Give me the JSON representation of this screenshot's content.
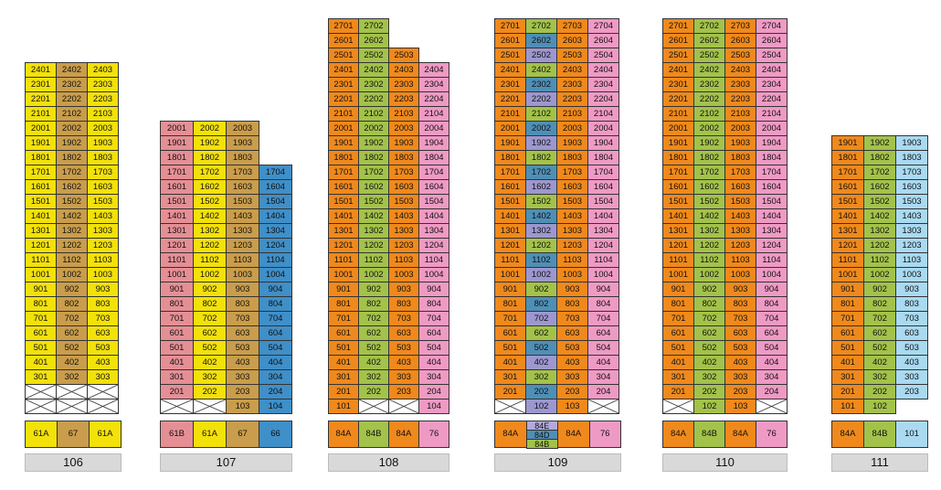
{
  "colors": {
    "61A": "#f3e10a",
    "61B": "#e58f95",
    "67": "#c99d4b",
    "66": "#3f8fc8",
    "84A": "#f0891c",
    "84B": "#a3c24a",
    "76": "#ef9ac4",
    "84C": "#9d97cf",
    "84D": "#4f8fb6",
    "84E": "#b3a9dd",
    "101": "#a9daf2"
  },
  "buildings": [
    {
      "name": "106",
      "columns": [
        "61A",
        "67",
        "61A"
      ],
      "legend": [
        {
          "label": "61A",
          "type": "61A"
        },
        {
          "label": "67",
          "type": "67"
        },
        {
          "label": "61A",
          "type": "61A"
        }
      ],
      "floors": [
        [
          "2401",
          "2402",
          "2403"
        ],
        [
          "2301",
          "2302",
          "2303"
        ],
        [
          "2201",
          "2202",
          "2203"
        ],
        [
          "2101",
          "2102",
          "2103"
        ],
        [
          "2001",
          "2002",
          "2003"
        ],
        [
          "1901",
          "1902",
          "1903"
        ],
        [
          "1801",
          "1802",
          "1803"
        ],
        [
          "1701",
          "1702",
          "1703"
        ],
        [
          "1601",
          "1602",
          "1603"
        ],
        [
          "1501",
          "1502",
          "1503"
        ],
        [
          "1401",
          "1402",
          "1403"
        ],
        [
          "1301",
          "1302",
          "1303"
        ],
        [
          "1201",
          "1202",
          "1203"
        ],
        [
          "1101",
          "1102",
          "1103"
        ],
        [
          "1001",
          "1002",
          "1003"
        ],
        [
          "901",
          "902",
          "903"
        ],
        [
          "801",
          "802",
          "803"
        ],
        [
          "701",
          "702",
          "703"
        ],
        [
          "601",
          "602",
          "603"
        ],
        [
          "501",
          "502",
          "503"
        ],
        [
          "401",
          "402",
          "403"
        ],
        [
          "301",
          "302",
          "303"
        ],
        [
          "X",
          "X",
          "X"
        ],
        [
          "X",
          "X",
          "X"
        ]
      ]
    },
    {
      "name": "107",
      "columns": [
        "61B",
        "61A",
        "67",
        "66"
      ],
      "legend": [
        {
          "label": "61B",
          "type": "61B"
        },
        {
          "label": "61A",
          "type": "61A"
        },
        {
          "label": "67",
          "type": "67"
        },
        {
          "label": "66",
          "type": "66"
        }
      ],
      "floors": [
        [
          "2001",
          "2002",
          "2003",
          ""
        ],
        [
          "1901",
          "1902",
          "1903",
          ""
        ],
        [
          "1801",
          "1802",
          "1803",
          ""
        ],
        [
          "1701",
          "1702",
          "1703",
          "1704"
        ],
        [
          "1601",
          "1602",
          "1603",
          "1604"
        ],
        [
          "1501",
          "1502",
          "1503",
          "1504"
        ],
        [
          "1401",
          "1402",
          "1403",
          "1404"
        ],
        [
          "1301",
          "1302",
          "1303",
          "1304"
        ],
        [
          "1201",
          "1202",
          "1203",
          "1204"
        ],
        [
          "1101",
          "1102",
          "1103",
          "1104"
        ],
        [
          "1001",
          "1002",
          "1003",
          "1004"
        ],
        [
          "901",
          "902",
          "903",
          "904"
        ],
        [
          "801",
          "802",
          "803",
          "804"
        ],
        [
          "701",
          "702",
          "703",
          "704"
        ],
        [
          "601",
          "602",
          "603",
          "604"
        ],
        [
          "501",
          "502",
          "503",
          "504"
        ],
        [
          "401",
          "402",
          "403",
          "404"
        ],
        [
          "301",
          "302",
          "303",
          "304"
        ],
        [
          "201",
          "202",
          "203",
          "204"
        ],
        [
          "X",
          "X",
          "103",
          "104"
        ]
      ]
    },
    {
      "name": "108",
      "columns": [
        "84A",
        "84B",
        "84A",
        "76"
      ],
      "legend": [
        {
          "label": "84A",
          "type": "84A"
        },
        {
          "label": "84B",
          "type": "84B"
        },
        {
          "label": "84A",
          "type": "84A"
        },
        {
          "label": "76",
          "type": "76"
        }
      ],
      "floors": [
        [
          "2701",
          "2702",
          "",
          ""
        ],
        [
          "2601",
          "2602",
          "",
          ""
        ],
        [
          "2501",
          "2502",
          "2503",
          ""
        ],
        [
          "2401",
          "2402",
          "2403",
          "2404"
        ],
        [
          "2301",
          "2302",
          "2303",
          "2304"
        ],
        [
          "2201",
          "2202",
          "2203",
          "2204"
        ],
        [
          "2101",
          "2102",
          "2103",
          "2104"
        ],
        [
          "2001",
          "2002",
          "2003",
          "2004"
        ],
        [
          "1901",
          "1902",
          "1903",
          "1904"
        ],
        [
          "1801",
          "1802",
          "1803",
          "1804"
        ],
        [
          "1701",
          "1702",
          "1703",
          "1704"
        ],
        [
          "1601",
          "1602",
          "1603",
          "1604"
        ],
        [
          "1501",
          "1502",
          "1503",
          "1504"
        ],
        [
          "1401",
          "1402",
          "1403",
          "1404"
        ],
        [
          "1301",
          "1302",
          "1303",
          "1304"
        ],
        [
          "1201",
          "1202",
          "1203",
          "1204"
        ],
        [
          "1101",
          "1102",
          "1103",
          "1104"
        ],
        [
          "1001",
          "1002",
          "1003",
          "1004"
        ],
        [
          "901",
          "902",
          "903",
          "904"
        ],
        [
          "801",
          "802",
          "803",
          "804"
        ],
        [
          "701",
          "702",
          "703",
          "704"
        ],
        [
          "601",
          "602",
          "603",
          "604"
        ],
        [
          "501",
          "502",
          "503",
          "504"
        ],
        [
          "401",
          "402",
          "403",
          "404"
        ],
        [
          "301",
          "302",
          "303",
          "304"
        ],
        [
          "201",
          "202",
          "203",
          "204"
        ],
        [
          "101",
          "X",
          "X",
          "104"
        ]
      ]
    },
    {
      "name": "109",
      "columns": [
        "84A",
        "84B",
        "84A",
        "76"
      ],
      "col2_cycle": [
        "84C",
        "84D",
        "84B"
      ],
      "legend": [
        {
          "label": "84A",
          "type": "84A"
        },
        {
          "stack": [
            {
              "label": "84E",
              "type": "84E"
            },
            {
              "label": "84D",
              "type": "84D"
            },
            {
              "label": "84B",
              "type": "84B"
            }
          ]
        },
        {
          "label": "84A",
          "type": "84A"
        },
        {
          "label": "76",
          "type": "76"
        }
      ],
      "floors": [
        [
          "2701",
          "2702",
          "2703",
          "2704"
        ],
        [
          "2601",
          "2602",
          "2603",
          "2604"
        ],
        [
          "2501",
          "2502",
          "2503",
          "2504"
        ],
        [
          "2401",
          "2402",
          "2403",
          "2404"
        ],
        [
          "2301",
          "2302",
          "2303",
          "2304"
        ],
        [
          "2201",
          "2202",
          "2203",
          "2204"
        ],
        [
          "2101",
          "2102",
          "2103",
          "2104"
        ],
        [
          "2001",
          "2002",
          "2003",
          "2004"
        ],
        [
          "1901",
          "1902",
          "1903",
          "1904"
        ],
        [
          "1801",
          "1802",
          "1803",
          "1804"
        ],
        [
          "1701",
          "1702",
          "1703",
          "1704"
        ],
        [
          "1601",
          "1602",
          "1603",
          "1604"
        ],
        [
          "1501",
          "1502",
          "1503",
          "1504"
        ],
        [
          "1401",
          "1402",
          "1403",
          "1404"
        ],
        [
          "1301",
          "1302",
          "1303",
          "1304"
        ],
        [
          "1201",
          "1202",
          "1203",
          "1204"
        ],
        [
          "1101",
          "1102",
          "1103",
          "1104"
        ],
        [
          "1001",
          "1002",
          "1003",
          "1004"
        ],
        [
          "901",
          "902",
          "903",
          "904"
        ],
        [
          "801",
          "802",
          "803",
          "804"
        ],
        [
          "701",
          "702",
          "703",
          "704"
        ],
        [
          "601",
          "602",
          "603",
          "604"
        ],
        [
          "501",
          "502",
          "503",
          "504"
        ],
        [
          "401",
          "402",
          "403",
          "404"
        ],
        [
          "301",
          "302",
          "303",
          "304"
        ],
        [
          "201",
          "202",
          "203",
          "204"
        ],
        [
          "X",
          "102",
          "103",
          "X"
        ]
      ]
    },
    {
      "name": "110",
      "columns": [
        "84A",
        "84B",
        "84A",
        "76"
      ],
      "legend": [
        {
          "label": "84A",
          "type": "84A"
        },
        {
          "label": "84B",
          "type": "84B"
        },
        {
          "label": "84A",
          "type": "84A"
        },
        {
          "label": "76",
          "type": "76"
        }
      ],
      "floors": [
        [
          "2701",
          "2702",
          "2703",
          "2704"
        ],
        [
          "2601",
          "2602",
          "2603",
          "2604"
        ],
        [
          "2501",
          "2502",
          "2503",
          "2504"
        ],
        [
          "2401",
          "2402",
          "2403",
          "2404"
        ],
        [
          "2301",
          "2302",
          "2303",
          "2304"
        ],
        [
          "2201",
          "2202",
          "2203",
          "2204"
        ],
        [
          "2101",
          "2102",
          "2103",
          "2104"
        ],
        [
          "2001",
          "2002",
          "2003",
          "2004"
        ],
        [
          "1901",
          "1902",
          "1903",
          "1904"
        ],
        [
          "1801",
          "1802",
          "1803",
          "1804"
        ],
        [
          "1701",
          "1702",
          "1703",
          "1704"
        ],
        [
          "1601",
          "1602",
          "1603",
          "1604"
        ],
        [
          "1501",
          "1502",
          "1503",
          "1504"
        ],
        [
          "1401",
          "1402",
          "1403",
          "1404"
        ],
        [
          "1301",
          "1302",
          "1303",
          "1304"
        ],
        [
          "1201",
          "1202",
          "1203",
          "1204"
        ],
        [
          "1101",
          "1102",
          "1103",
          "1104"
        ],
        [
          "1001",
          "1002",
          "1003",
          "1004"
        ],
        [
          "901",
          "902",
          "903",
          "904"
        ],
        [
          "801",
          "802",
          "803",
          "804"
        ],
        [
          "701",
          "702",
          "703",
          "704"
        ],
        [
          "601",
          "602",
          "603",
          "604"
        ],
        [
          "501",
          "502",
          "503",
          "504"
        ],
        [
          "401",
          "402",
          "403",
          "404"
        ],
        [
          "301",
          "302",
          "303",
          "304"
        ],
        [
          "201",
          "202",
          "203",
          "204"
        ],
        [
          "X",
          "102",
          "103",
          "X"
        ]
      ]
    },
    {
      "name": "111",
      "columns": [
        "84A",
        "84B",
        "101"
      ],
      "legend": [
        {
          "label": "84A",
          "type": "84A"
        },
        {
          "label": "84B",
          "type": "84B"
        },
        {
          "label": "101",
          "type": "101"
        }
      ],
      "floors": [
        [
          "1901",
          "1902",
          "1903"
        ],
        [
          "1801",
          "1802",
          "1803"
        ],
        [
          "1701",
          "1702",
          "1703"
        ],
        [
          "1601",
          "1602",
          "1603"
        ],
        [
          "1501",
          "1502",
          "1503"
        ],
        [
          "1401",
          "1402",
          "1403"
        ],
        [
          "1301",
          "1302",
          "1303"
        ],
        [
          "1201",
          "1202",
          "1203"
        ],
        [
          "1101",
          "1102",
          "1103"
        ],
        [
          "1001",
          "1002",
          "1003"
        ],
        [
          "901",
          "902",
          "903"
        ],
        [
          "801",
          "802",
          "803"
        ],
        [
          "701",
          "702",
          "703"
        ],
        [
          "601",
          "602",
          "603"
        ],
        [
          "501",
          "502",
          "503"
        ],
        [
          "401",
          "402",
          "403"
        ],
        [
          "301",
          "302",
          "303"
        ],
        [
          "201",
          "202",
          "203"
        ],
        [
          "101",
          "102",
          ""
        ]
      ]
    }
  ]
}
